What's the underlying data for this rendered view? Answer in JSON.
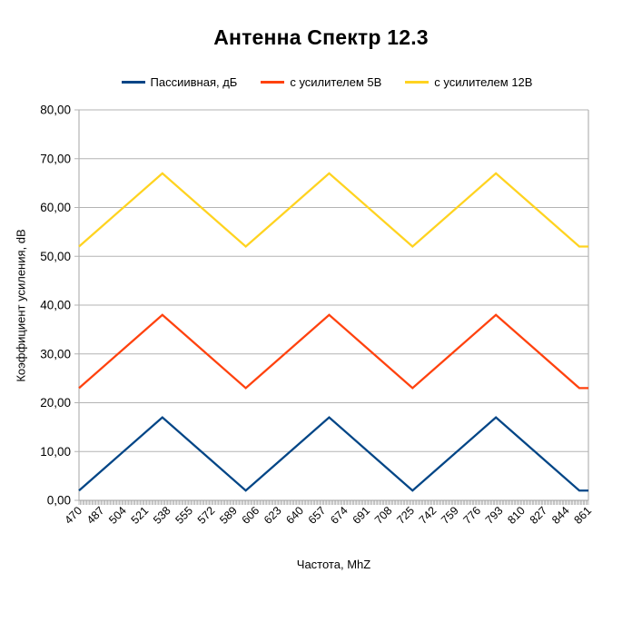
{
  "title": "Антенна Спектр 12.3",
  "chart_data": {
    "type": "line",
    "title": "Антенна Спектр 12.3",
    "xlabel": "Частота, MhZ",
    "ylabel": "Коэффициент усиления, dB",
    "x_min": 470,
    "x_max": 861,
    "ylim": [
      0,
      80
    ],
    "grid": "horizontal",
    "legend_position": "top",
    "x_label_rotation_deg": -45,
    "x_minor_tick_step": 1,
    "x_tick_labels": [
      "470",
      "487",
      "504",
      "521",
      "538",
      "555",
      "572",
      "589",
      "606",
      "623",
      "640",
      "657",
      "674",
      "691",
      "708",
      "725",
      "742",
      "759",
      "776",
      "793",
      "810",
      "827",
      "844",
      "861"
    ],
    "y_tick_labels": [
      "0,00",
      "10,00",
      "20,00",
      "30,00",
      "40,00",
      "50,00",
      "60,00",
      "70,00",
      "80,00"
    ],
    "grid_color": "#b3b3b3",
    "series": [
      {
        "name": "Пассиивная, дБ",
        "color": "#004586",
        "shape": "triangle-wave",
        "points": [
          [
            470,
            2
          ],
          [
            534,
            17
          ],
          [
            598,
            2
          ],
          [
            662,
            17
          ],
          [
            726,
            2
          ],
          [
            790,
            17
          ],
          [
            854,
            2
          ],
          [
            861,
            2
          ]
        ]
      },
      {
        "name": "с усилителем 5В",
        "color": "#ff420e",
        "shape": "triangle-wave",
        "points": [
          [
            470,
            23
          ],
          [
            534,
            38
          ],
          [
            598,
            23
          ],
          [
            662,
            38
          ],
          [
            726,
            23
          ],
          [
            790,
            38
          ],
          [
            854,
            23
          ],
          [
            861,
            23
          ]
        ]
      },
      {
        "name": "с усилителем 12В",
        "color": "#ffd320",
        "shape": "triangle-wave",
        "points": [
          [
            470,
            52
          ],
          [
            534,
            67
          ],
          [
            598,
            52
          ],
          [
            662,
            67
          ],
          [
            726,
            52
          ],
          [
            790,
            67
          ],
          [
            854,
            52
          ],
          [
            861,
            52
          ]
        ]
      }
    ]
  }
}
